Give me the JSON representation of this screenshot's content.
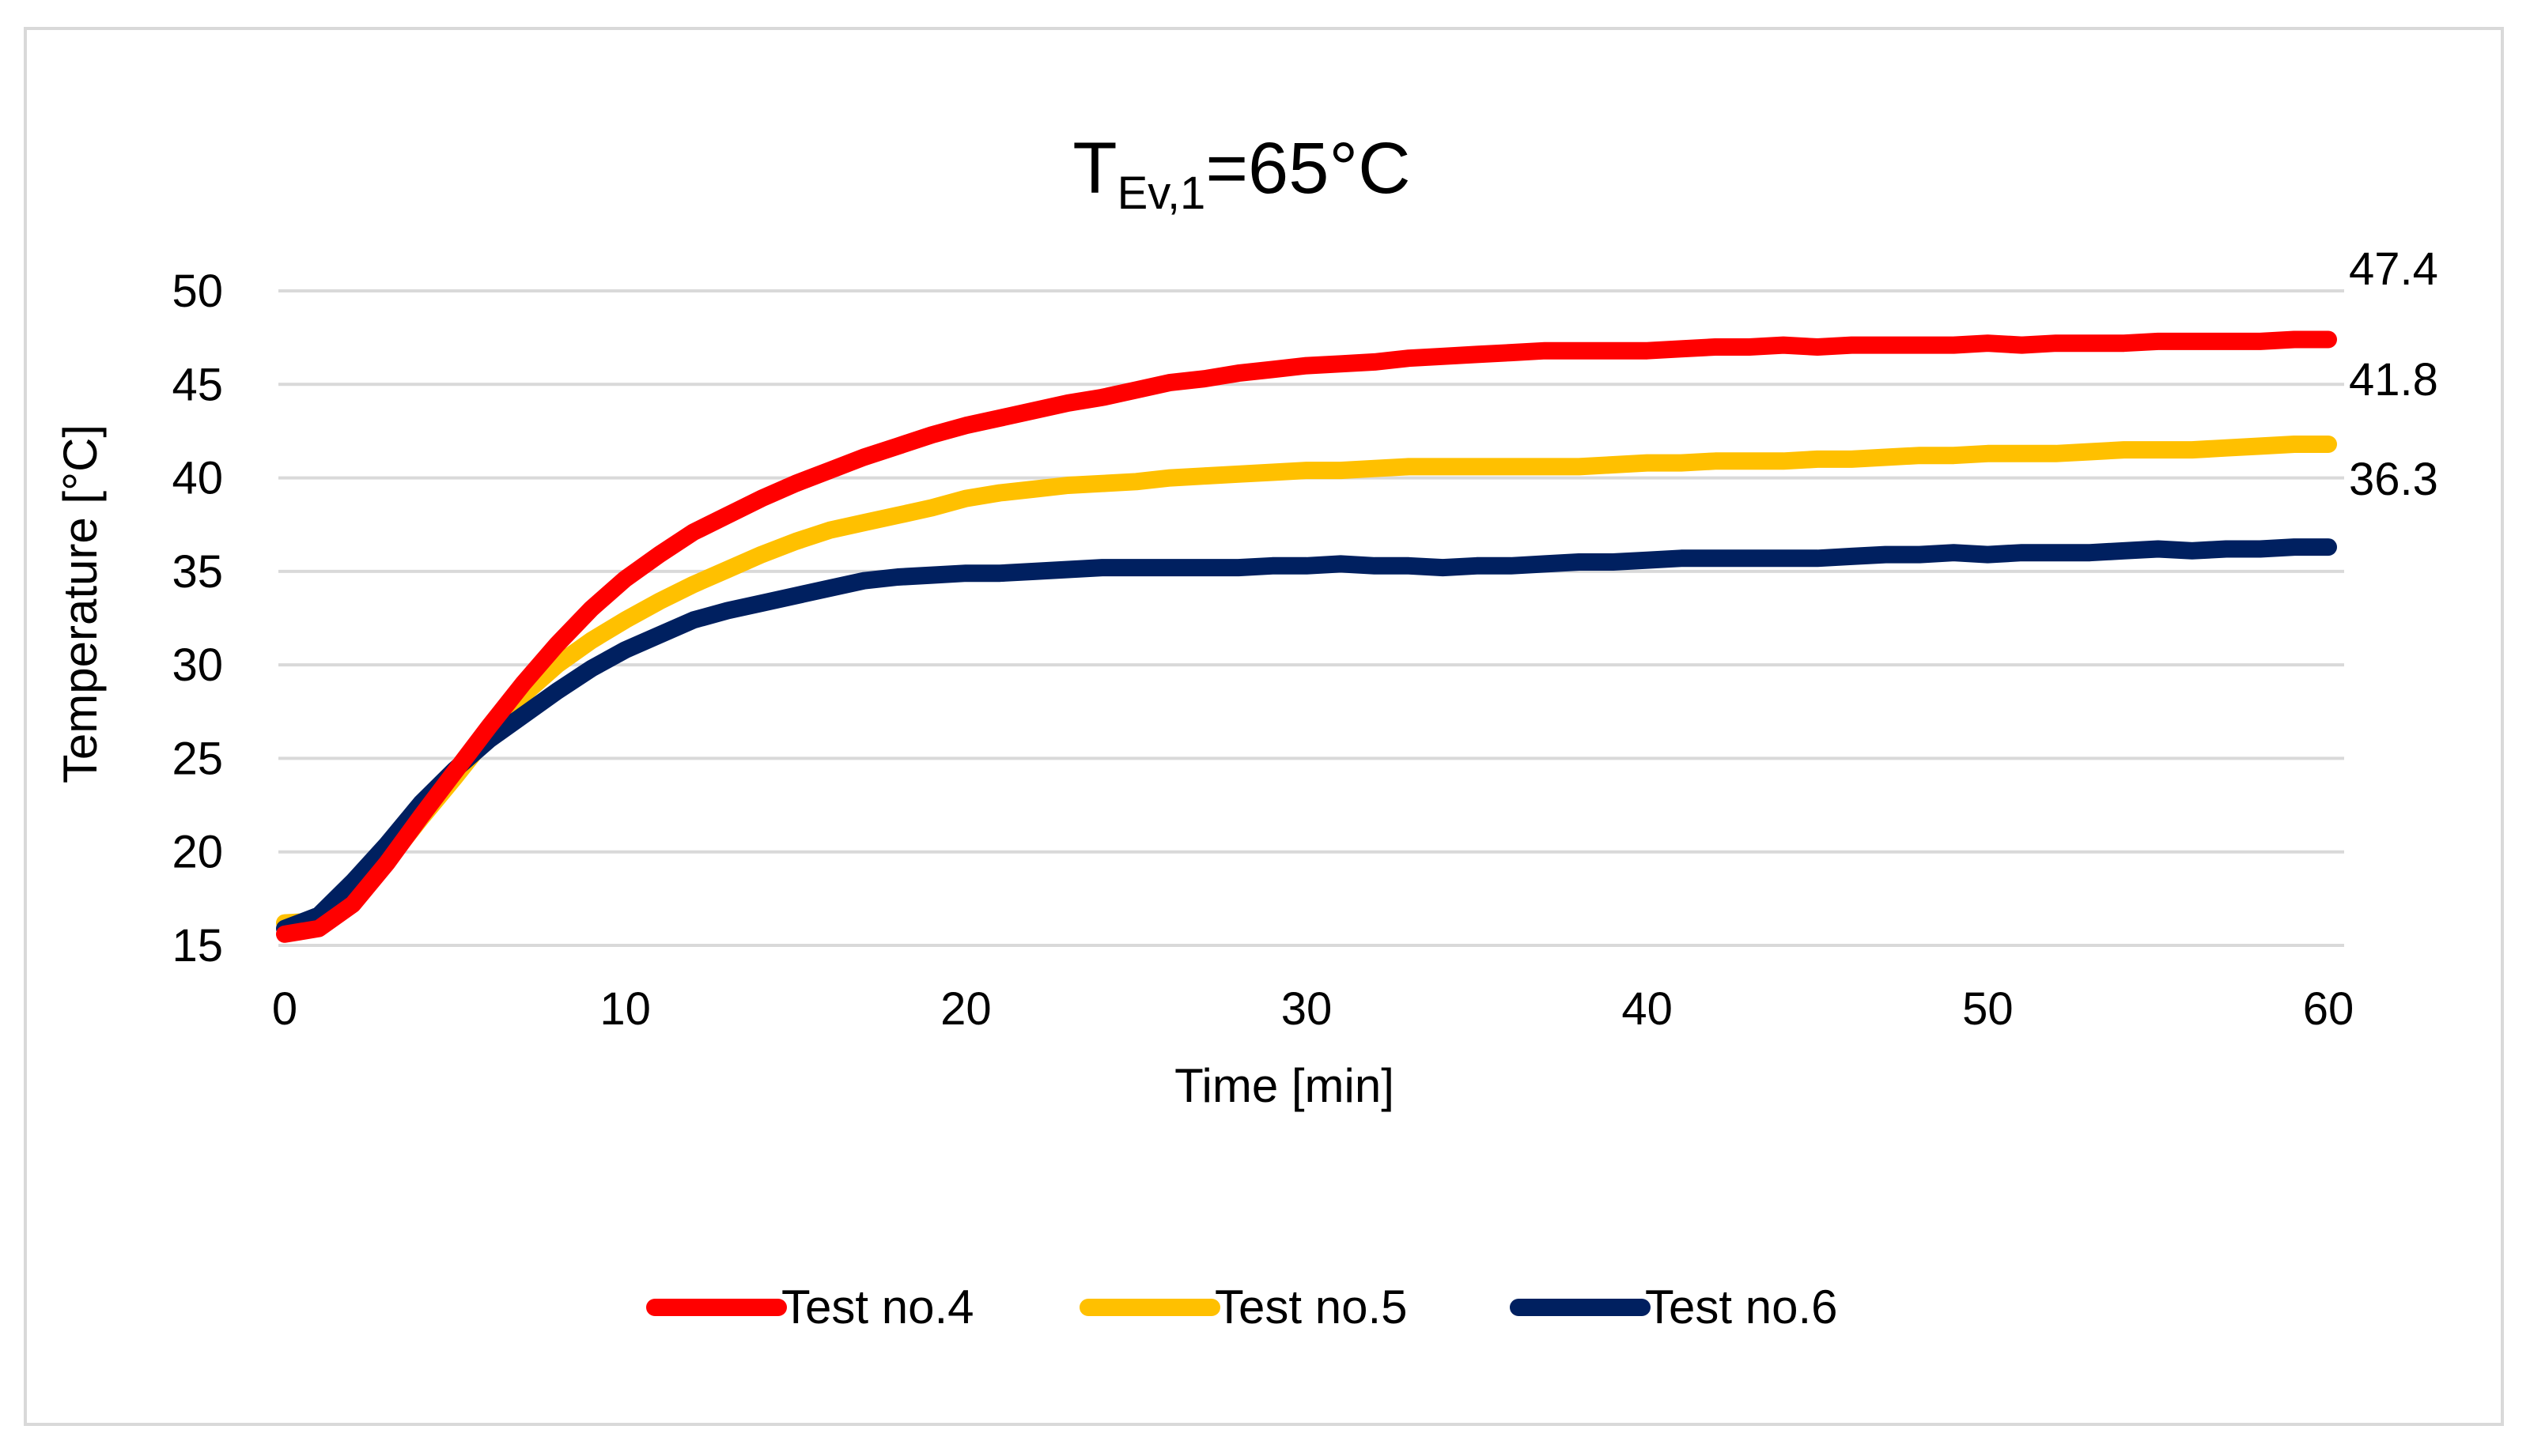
{
  "chart_data": {
    "type": "line",
    "title": {
      "main": "T",
      "subscript": "Ev,1",
      "suffix": "=65°C"
    },
    "xlabel": "Time [min]",
    "ylabel": "Temperature [°C]",
    "xlim": [
      0,
      60
    ],
    "ylim": [
      15,
      50
    ],
    "x_ticks": [
      0,
      10,
      20,
      30,
      40,
      50,
      60
    ],
    "x_tick_labels": [
      "0",
      "10",
      "20",
      "30",
      "40",
      "50",
      "60"
    ],
    "y_ticks": [
      15,
      20,
      25,
      30,
      35,
      40,
      45,
      50
    ],
    "y_tick_labels": [
      "15",
      "20",
      "25",
      "30",
      "35",
      "40",
      "45",
      "50"
    ],
    "grid": "horizontal",
    "legend_position": "bottom",
    "x": [
      0,
      1,
      2,
      3,
      4,
      5,
      6,
      7,
      8,
      9,
      10,
      11,
      12,
      13,
      14,
      15,
      16,
      17,
      18,
      19,
      20,
      21,
      22,
      23,
      24,
      25,
      26,
      27,
      28,
      29,
      30,
      31,
      32,
      33,
      34,
      35,
      36,
      37,
      38,
      39,
      40,
      41,
      42,
      43,
      44,
      45,
      46,
      47,
      48,
      49,
      50,
      51,
      52,
      53,
      54,
      55,
      56,
      57,
      58,
      59,
      60
    ],
    "series": [
      {
        "name": "Test no.4",
        "color": "#ff0000",
        "end_label": "47.4",
        "values": [
          15.6,
          15.9,
          17.2,
          19.4,
          21.9,
          24.3,
          26.7,
          29.0,
          31.1,
          33.0,
          34.6,
          35.9,
          37.1,
          38.0,
          38.9,
          39.7,
          40.4,
          41.1,
          41.7,
          42.3,
          42.8,
          43.2,
          43.6,
          44.0,
          44.3,
          44.7,
          45.1,
          45.3,
          45.6,
          45.8,
          46.0,
          46.1,
          46.2,
          46.4,
          46.5,
          46.6,
          46.7,
          46.8,
          46.8,
          46.8,
          46.8,
          46.9,
          47.0,
          47.0,
          47.1,
          47.0,
          47.1,
          47.1,
          47.1,
          47.1,
          47.2,
          47.1,
          47.2,
          47.2,
          47.2,
          47.3,
          47.3,
          47.3,
          47.3,
          47.4,
          47.4
        ]
      },
      {
        "name": "Test no.5",
        "color": "#ffc000",
        "end_label": "41.8",
        "values": [
          16.2,
          16.3,
          17.5,
          19.5,
          21.8,
          24.0,
          26.3,
          28.4,
          30.0,
          31.3,
          32.4,
          33.4,
          34.3,
          35.1,
          35.9,
          36.6,
          37.2,
          37.6,
          38.0,
          38.4,
          38.9,
          39.2,
          39.4,
          39.6,
          39.7,
          39.8,
          40.0,
          40.1,
          40.2,
          40.3,
          40.4,
          40.4,
          40.5,
          40.6,
          40.6,
          40.6,
          40.6,
          40.6,
          40.6,
          40.7,
          40.8,
          40.8,
          40.9,
          40.9,
          40.9,
          41.0,
          41.0,
          41.1,
          41.2,
          41.2,
          41.3,
          41.3,
          41.3,
          41.4,
          41.5,
          41.5,
          41.5,
          41.6,
          41.7,
          41.8,
          41.8
        ]
      },
      {
        "name": "Test no.6",
        "color": "#002060",
        "end_label": "36.3",
        "values": [
          15.9,
          16.6,
          18.4,
          20.4,
          22.6,
          24.4,
          26.0,
          27.3,
          28.6,
          29.8,
          30.8,
          31.6,
          32.4,
          32.9,
          33.3,
          33.7,
          34.1,
          34.5,
          34.7,
          34.8,
          34.9,
          34.9,
          35.0,
          35.1,
          35.2,
          35.2,
          35.2,
          35.2,
          35.2,
          35.3,
          35.3,
          35.4,
          35.3,
          35.3,
          35.2,
          35.3,
          35.3,
          35.4,
          35.5,
          35.5,
          35.6,
          35.7,
          35.7,
          35.7,
          35.7,
          35.7,
          35.8,
          35.9,
          35.9,
          36.0,
          35.9,
          36.0,
          36.0,
          36.0,
          36.1,
          36.2,
          36.1,
          36.2,
          36.2,
          36.3,
          36.3
        ]
      }
    ]
  }
}
